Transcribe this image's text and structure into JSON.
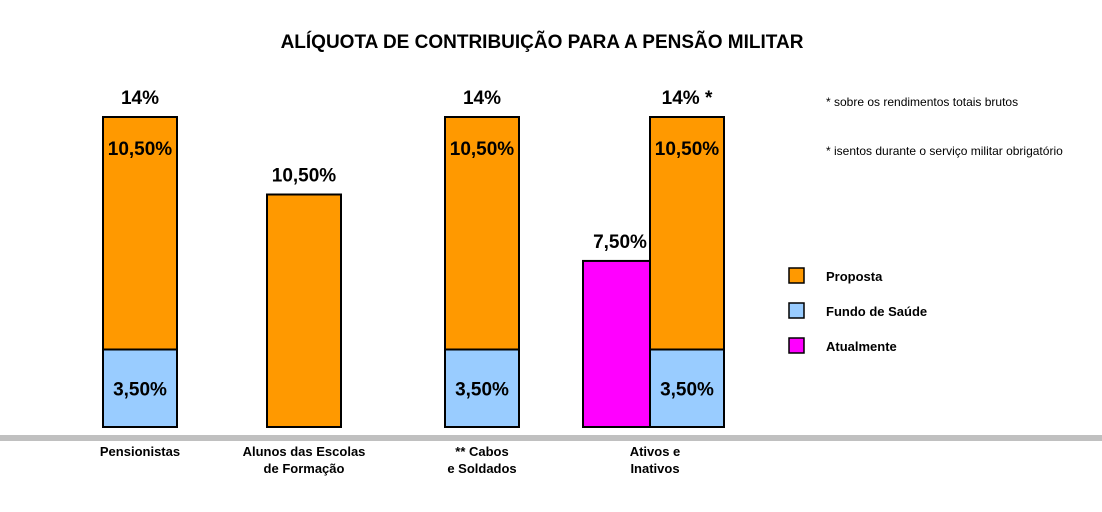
{
  "chart_data": {
    "type": "bar",
    "title": "ALÍQUOTA DE CONTRIBUIÇÃO PARA A PENSÃO MILITAR",
    "ylim": [
      0,
      14.7
    ],
    "grid": false,
    "legend_position": "right",
    "colors": {
      "Proposta": "#ff9900",
      "Fundo de Saúde": "#99ccff",
      "Atualmente": "#ff00ff",
      "axis": "#c0c0c0"
    },
    "categories": [
      [
        "Pensionistas"
      ],
      [
        "Alunos das Escolas",
        "de Formação"
      ],
      [
        "** Cabos",
        "e Soldados"
      ],
      [
        "Ativos e",
        "Inativos"
      ]
    ],
    "bars": [
      {
        "category_index": 0,
        "total_label": "14%",
        "segments": [
          {
            "series": "Fundo de Saúde",
            "value": 3.5,
            "label": "3,50%"
          },
          {
            "series": "Proposta",
            "value": 10.5,
            "label": "10,50%"
          }
        ]
      },
      {
        "category_index": 1,
        "total_label": "10,50%",
        "segments": [
          {
            "series": "Proposta",
            "value": 10.5,
            "label": ""
          }
        ]
      },
      {
        "category_index": 2,
        "total_label": "14%",
        "segments": [
          {
            "series": "Fundo de Saúde",
            "value": 3.5,
            "label": "3,50%"
          },
          {
            "series": "Proposta",
            "value": 10.5,
            "label": "10,50%"
          }
        ]
      },
      {
        "category_index": 3,
        "slot": "left",
        "total_label": "7,50%",
        "segments": [
          {
            "series": "Atualmente",
            "value": 7.5,
            "label": ""
          }
        ]
      },
      {
        "category_index": 3,
        "slot": "right",
        "total_label": "14% *",
        "segments": [
          {
            "series": "Fundo de Saúde",
            "value": 3.5,
            "label": "3,50%"
          },
          {
            "series": "Proposta",
            "value": 10.5,
            "label": "10,50%"
          }
        ]
      }
    ],
    "legend": [
      "Proposta",
      "Fundo de Saúde",
      "Atualmente"
    ],
    "notes": [
      "* sobre os rendimentos totais brutos",
      "* isentos durante o serviço militar obrigatório"
    ]
  }
}
